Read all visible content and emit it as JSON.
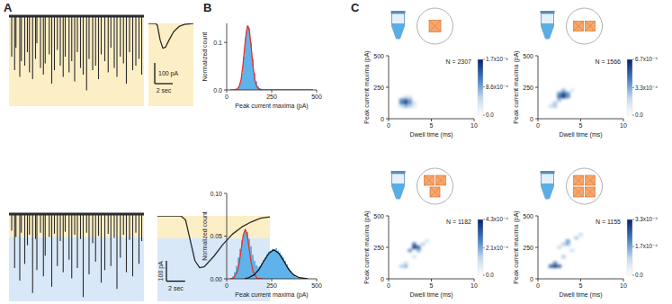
{
  "panel_labels": [
    "A",
    "B",
    "C"
  ],
  "chart_data": [
    {
      "type": "trace",
      "color": "#2b2b2b",
      "tick_labels": false,
      "xlim": [
        0,
        60
      ],
      "ylim": [
        0,
        200
      ],
      "bands": [
        {
          "from": 5,
          "to": 200,
          "color": "#fcefc6"
        }
      ],
      "x": [
        1.2,
        2.5,
        3.1,
        4.8,
        5.5,
        7,
        8.2,
        9.1,
        10.5,
        11.8,
        12.4,
        14,
        15.3,
        16.1,
        17.9,
        19,
        20.2,
        21.5,
        22.8,
        24.1,
        25,
        26.7,
        27.9,
        29.2,
        30.4,
        31.8,
        33,
        34.5,
        35.6,
        37.2,
        38.5,
        39.8,
        41,
        42.6,
        44.1,
        45.3,
        46.8,
        48,
        49.5,
        50.9,
        52.2,
        53.6,
        55,
        56.4,
        57.8,
        59
      ],
      "values": [
        90,
        120,
        70,
        135,
        100,
        110,
        80,
        125,
        140,
        95,
        60,
        115,
        130,
        105,
        85,
        150,
        120,
        75,
        110,
        135,
        90,
        125,
        100,
        145,
        80,
        115,
        130,
        165,
        95,
        120,
        110,
        140,
        85,
        100,
        125,
        70,
        115,
        135,
        90,
        105,
        150,
        80,
        120,
        110,
        95,
        130
      ]
    },
    {
      "type": "event",
      "color": "#2b2b2b",
      "tick_labels": false,
      "xlim": [
        0,
        5
      ],
      "ylim": [
        0,
        400
      ],
      "bands": [
        {
          "from": 0,
          "to": 400,
          "color": "#fcefc6"
        }
      ],
      "x": [
        0,
        0.8,
        1,
        1.3,
        1.6,
        1.9,
        2.3,
        2.8,
        3.4,
        4,
        5
      ],
      "values": [
        0,
        0,
        10,
        80,
        120,
        115,
        80,
        40,
        15,
        5,
        0
      ],
      "scale_bars": {
        "y": {
          "value": 100,
          "label": "100 pA"
        },
        "x": {
          "value": 2,
          "label": "2 sec"
        }
      }
    },
    {
      "type": "trace",
      "color": "#2b2b2b",
      "tick_labels": false,
      "xlim": [
        0,
        60
      ],
      "ylim": [
        0,
        420
      ],
      "bands": [
        {
          "from": 5,
          "to": 110,
          "color": "#fcefc6"
        },
        {
          "from": 110,
          "to": 420,
          "color": "#d9e8f8"
        }
      ],
      "x": [
        1.2,
        2.5,
        3.1,
        4.8,
        5.5,
        7,
        8.2,
        9.1,
        10.5,
        11.8,
        12.4,
        14,
        15.3,
        16.1,
        17.9,
        19,
        20.2,
        21.5,
        22.8,
        24.1,
        25,
        26.7,
        27.9,
        29.2,
        30.4,
        31.8,
        33,
        34.5,
        35.6,
        37.2,
        38.5,
        39.8,
        41,
        42.6,
        44.1,
        45.3,
        46.8,
        48,
        49.5,
        50.9,
        52.2,
        53.6,
        55,
        56.4,
        57.8,
        59
      ],
      "values": [
        80,
        260,
        110,
        320,
        90,
        240,
        150,
        100,
        380,
        120,
        270,
        90,
        300,
        200,
        110,
        350,
        95,
        250,
        130,
        280,
        85,
        220,
        310,
        100,
        260,
        120,
        400,
        90,
        290,
        140,
        230,
        105,
        330,
        270,
        95,
        250,
        115,
        360,
        210,
        100,
        280,
        125,
        300,
        90,
        240,
        130
      ]
    },
    {
      "type": "event",
      "color": "#2b2b2b",
      "tick_labels": false,
      "xlim": [
        0,
        12
      ],
      "ylim": [
        0,
        420
      ],
      "bands": [
        {
          "from": 0,
          "to": 110,
          "color": "#fcefc6"
        },
        {
          "from": 110,
          "to": 420,
          "color": "#d9e8f8"
        }
      ],
      "x": [
        0,
        2.5,
        3,
        3.5,
        4,
        4.5,
        5,
        6,
        7,
        8,
        9,
        10,
        11,
        12
      ],
      "values": [
        0,
        0,
        20,
        120,
        220,
        255,
        250,
        200,
        140,
        90,
        55,
        30,
        12,
        5
      ],
      "scale_bars": {
        "y": {
          "value": 100,
          "label": "100 pA"
        },
        "x": {
          "value": 2,
          "label": "2 sec"
        }
      }
    },
    {
      "type": "histogram",
      "color": "#5fb3ea",
      "xlabel": "Peak current maxima (pA)",
      "ylabel": "Normalized count",
      "xlim": [
        0,
        500
      ],
      "xticks": [
        0,
        250,
        500
      ],
      "ylim": [
        0,
        0.14
      ],
      "yticks": [
        {
          "value": 0,
          "label": "0.0"
        },
        0.1
      ],
      "bins": [
        50,
        60,
        70,
        80,
        90,
        100,
        110,
        120,
        130,
        140,
        150,
        160,
        170,
        180,
        190,
        200
      ],
      "values": [
        0.002,
        0.006,
        0.015,
        0.035,
        0.07,
        0.11,
        0.135,
        0.13,
        0.1,
        0.065,
        0.035,
        0.018,
        0.008,
        0.004,
        0.002
      ],
      "series": [
        {
          "type": "line",
          "color": "#e8322b",
          "x": [
            20,
            40,
            60,
            70,
            80,
            90,
            100,
            110,
            118,
            126,
            136,
            146,
            156,
            166,
            176,
            196,
            300,
            480
          ],
          "values": [
            0,
            0,
            0.002,
            0.0076,
            0.022,
            0.051,
            0.09,
            0.125,
            0.135,
            0.125,
            0.09,
            0.051,
            0.022,
            0.0076,
            0.002,
            0,
            0,
            0
          ]
        }
      ]
    },
    {
      "type": "histogram",
      "color": "#5fb3ea",
      "xlabel": "Peak current maxima (pA)",
      "ylabel": "Normalized count",
      "xlim": [
        0,
        500
      ],
      "xticks": [
        0,
        250,
        500
      ],
      "ylim": [
        0,
        0.1
      ],
      "yticks": [
        {
          "value": 0,
          "label": "0.00"
        },
        0.05,
        {
          "value": 0.1,
          "label": "0.10"
        }
      ],
      "bins": [
        30,
        40,
        50,
        60,
        70,
        80,
        90,
        100,
        110,
        120,
        130,
        140,
        150,
        160,
        170,
        180,
        190,
        200,
        210,
        220,
        230,
        240,
        250,
        260,
        270,
        280,
        290,
        300,
        310,
        320,
        330,
        340,
        350,
        360,
        370,
        380,
        390,
        400
      ],
      "values": [
        0.003,
        0.008,
        0.015,
        0.025,
        0.035,
        0.045,
        0.053,
        0.057,
        0.055,
        0.047,
        0.038,
        0.028,
        0.021,
        0.016,
        0.014,
        0.015,
        0.018,
        0.022,
        0.025,
        0.029,
        0.032,
        0.033,
        0.035,
        0.034,
        0.036,
        0.033,
        0.031,
        0.028,
        0.025,
        0.021,
        0.017,
        0.013,
        0.009,
        0.006,
        0.004,
        0.002,
        0.001
      ],
      "series": [
        {
          "type": "line",
          "color": "#e8322b",
          "x": [
            20,
            37,
            59,
            70,
            81,
            92,
            103,
            114,
            125,
            136,
            147,
            169,
            200
          ],
          "values": [
            0,
            0.0006,
            0.008,
            0.019,
            0.035,
            0.051,
            0.058,
            0.051,
            0.035,
            0.019,
            0.008,
            0.0006,
            0
          ]
        },
        {
          "type": "line",
          "color": "#111111",
          "x": [
            100,
            122,
            152,
            180,
            207,
            235,
            262,
            289,
            317,
            344,
            372,
            402,
            450
          ],
          "values": [
            0.0002,
            0.0013,
            0.0046,
            0.011,
            0.021,
            0.03,
            0.034,
            0.03,
            0.021,
            0.011,
            0.0046,
            0.0013,
            0.0002
          ]
        }
      ]
    },
    {
      "type": "heatmap",
      "cubes": 1,
      "annotation": "N = 2307",
      "xlabel": "Dwell time (ms)",
      "ylabel": "Peak current maxima (pA)",
      "xlim": [
        0,
        10
      ],
      "xticks": [
        0,
        5,
        10
      ],
      "ylim": [
        0,
        500
      ],
      "yticks": [
        0,
        250,
        500
      ],
      "cell_size": [
        0.5,
        25
      ],
      "cells": [
        [
          1.5,
          125,
          0.0012
        ],
        [
          2,
          125,
          0.0017
        ],
        [
          2,
          150,
          0.0014
        ],
        [
          2.5,
          125,
          0.001
        ],
        [
          2.5,
          150,
          0.0009
        ],
        [
          1.5,
          150,
          0.001
        ],
        [
          2,
          100,
          0.0008
        ],
        [
          1.5,
          100,
          0.0005
        ],
        [
          3,
          125,
          0.0004
        ],
        [
          3,
          100,
          0.0003
        ],
        [
          2.5,
          100,
          0.0006
        ],
        [
          2.5,
          175,
          0.0003
        ],
        [
          2,
          175,
          0.0004
        ]
      ],
      "colorbar": {
        "range": [
          0,
          0.0017
        ],
        "ticks": [
          {
            "value": 0,
            "label": "0.0"
          },
          {
            "value": 0.00086,
            "label": "8.6x10⁻⁴"
          },
          {
            "value": 0.0017,
            "label": "1.7x10⁻³"
          }
        ]
      }
    },
    {
      "type": "heatmap",
      "cubes": 2,
      "annotation": "N = 1566",
      "xlabel": "Dwell time (ms)",
      "ylabel": "Peak current maxima (pA)",
      "xlim": [
        0,
        10
      ],
      "xticks": [
        0,
        5,
        10
      ],
      "ylim": [
        0,
        500
      ],
      "yticks": [
        0,
        250,
        500
      ],
      "cell_size": [
        0.5,
        25
      ],
      "cells": [
        [
          2.5,
          175,
          0.0005
        ],
        [
          3,
          175,
          0.00067
        ],
        [
          3,
          200,
          0.0006
        ],
        [
          3.5,
          200,
          0.0004
        ],
        [
          2.5,
          200,
          0.0004
        ],
        [
          3.5,
          175,
          0.0004
        ],
        [
          3,
          225,
          0.0003
        ],
        [
          2.5,
          150,
          0.0003
        ],
        [
          2,
          125,
          0.00025
        ],
        [
          1.5,
          100,
          0.0002
        ],
        [
          2,
          100,
          0.00025
        ],
        [
          4,
          225,
          0.00015
        ]
      ],
      "colorbar": {
        "range": [
          0,
          0.00067
        ],
        "ticks": [
          {
            "value": 0,
            "label": "0.0"
          },
          {
            "value": 0.00033,
            "label": "3.3x10⁻⁴"
          },
          {
            "value": 0.00067,
            "label": "6.7x10⁻⁴"
          }
        ]
      }
    },
    {
      "type": "heatmap",
      "cubes": 3,
      "annotation": "N = 1182",
      "xlabel": "Dwell time (ms)",
      "ylabel": "Peak current maxima (pA)",
      "xlim": [
        0,
        10
      ],
      "xticks": [
        0,
        5,
        10
      ],
      "ylim": [
        0,
        500
      ],
      "yticks": [
        0,
        250,
        500
      ],
      "cell_size": [
        0.5,
        25
      ],
      "cells": [
        [
          3,
          250,
          0.00043
        ],
        [
          3.5,
          250,
          0.00035
        ],
        [
          3,
          275,
          0.0003
        ],
        [
          2.5,
          225,
          0.00025
        ],
        [
          3.5,
          225,
          0.0002
        ],
        [
          4,
          275,
          0.00015
        ],
        [
          2,
          100,
          0.0002
        ],
        [
          1.5,
          100,
          0.00015
        ],
        [
          2,
          125,
          0.00012
        ],
        [
          3,
          175,
          0.0001
        ],
        [
          4.5,
          300,
          0.0001
        ]
      ],
      "colorbar": {
        "range": [
          0,
          0.00043
        ],
        "ticks": [
          {
            "value": 0,
            "label": "0.0"
          },
          {
            "value": 0.00021,
            "label": "2.1x10⁻⁴"
          },
          {
            "value": 0.00043,
            "label": "4.3x10⁻⁴"
          }
        ]
      }
    },
    {
      "type": "heatmap",
      "cubes": 4,
      "annotation": "N = 1155",
      "xlabel": "Dwell time (ms)",
      "ylabel": "Peak current maxima (pA)",
      "xlim": [
        0,
        10
      ],
      "xticks": [
        0,
        5,
        10
      ],
      "ylim": [
        0,
        500
      ],
      "yticks": [
        0,
        250,
        500
      ],
      "cell_size": [
        0.5,
        25
      ],
      "cells": [
        [
          1.5,
          100,
          0.00025
        ],
        [
          2,
          100,
          0.00033
        ],
        [
          2.5,
          100,
          0.00025
        ],
        [
          2,
          125,
          0.0002
        ],
        [
          3,
          175,
          0.00012
        ],
        [
          3.5,
          275,
          0.00015
        ],
        [
          3.5,
          300,
          0.00018
        ],
        [
          3,
          275,
          0.00012
        ],
        [
          4.5,
          325,
          0.00012
        ],
        [
          5,
          350,
          0.0001
        ],
        [
          4,
          225,
          0.0001
        ],
        [
          2.5,
          250,
          0.0001
        ]
      ],
      "colorbar": {
        "range": [
          0,
          0.00033
        ],
        "ticks": [
          {
            "value": 0,
            "label": "0.0"
          },
          {
            "value": 0.00017,
            "label": "1.7x10⁻⁴"
          },
          {
            "value": 0.00033,
            "label": "3.3x10⁻⁴"
          }
        ]
      }
    }
  ]
}
